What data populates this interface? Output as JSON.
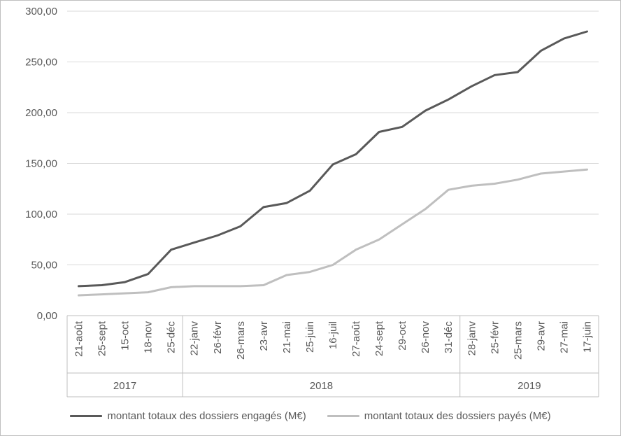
{
  "chart_data": {
    "type": "line",
    "title": "",
    "xlabel": "",
    "ylabel": "",
    "categories": [
      "21-août",
      "25-sept",
      "15-oct",
      "18-nov",
      "25-déc",
      "22-janv",
      "26-févr",
      "26-mars",
      "23-avr",
      "21-mai",
      "25-juin",
      "16-juil",
      "27-août",
      "24-sept",
      "29-oct",
      "26-nov",
      "31-déc",
      "28-janv",
      "25-févr",
      "25-mars",
      "29-avr",
      "27-mai",
      "17-juin"
    ],
    "year_groups": [
      {
        "label": "2017",
        "count": 5
      },
      {
        "label": "2018",
        "count": 12
      },
      {
        "label": "2019",
        "count": 6
      }
    ],
    "series": [
      {
        "name": "montant totaux des dossiers engagés (M€)",
        "color": "#595959",
        "values": [
          29,
          30,
          33,
          41,
          65,
          72,
          79,
          88,
          107,
          111,
          123,
          149,
          159,
          181,
          186,
          202,
          213,
          226,
          237,
          240,
          261,
          273,
          280
        ]
      },
      {
        "name": "montant totaux des dossiers payés (M€)",
        "color": "#bfbfbf",
        "values": [
          20,
          21,
          22,
          23,
          28,
          29,
          29,
          29,
          30,
          40,
          43,
          50,
          65,
          75,
          90,
          105,
          124,
          128,
          130,
          134,
          140,
          142,
          144
        ]
      }
    ],
    "ylim": [
      0,
      300
    ],
    "ytick_step": 50,
    "ytick_labels": [
      "0,00",
      "50,00",
      "100,00",
      "150,00",
      "200,00",
      "250,00",
      "300,00"
    ],
    "grid": true,
    "legend_position": "bottom",
    "colors": {
      "grid": "#d9d9d9",
      "axis": "#bfbfbf",
      "text": "#595959"
    }
  }
}
